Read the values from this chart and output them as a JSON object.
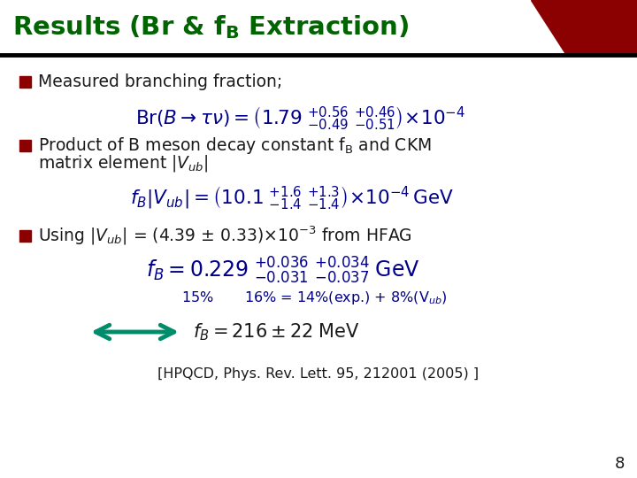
{
  "title_color": "#006400",
  "bg_color": "#ffffff",
  "header_stripe_color": "#8B0000",
  "bullet_color": "#8B0000",
  "text_color": "#00008B",
  "black_text": "#1a1a1a",
  "arrow_color": "#008B6B",
  "ref": "[HPQCD, Phys. Rev. Lett. 95, 212001 (2005) ]",
  "page_num": "8"
}
